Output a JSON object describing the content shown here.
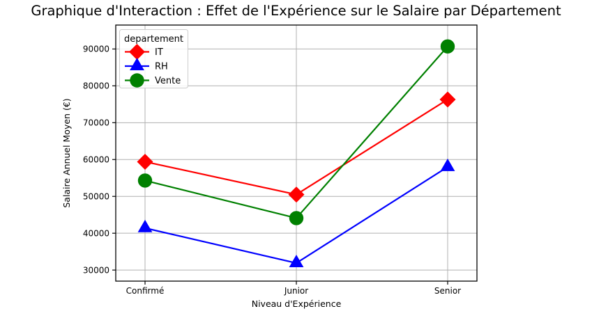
{
  "chart_data": {
    "type": "line",
    "title": "Graphique d'Interaction : Effet de l'Expérience sur le Salaire par Département",
    "xlabel": "Niveau d'Expérience",
    "ylabel": "Salaire Annuel Moyen (€)",
    "categories": [
      "Confirmé",
      "Junior",
      "Senior"
    ],
    "series": [
      {
        "name": "IT",
        "color": "#ff0000",
        "marker": "diamond",
        "values": [
          59400,
          50500,
          76300
        ]
      },
      {
        "name": "RH",
        "color": "#0000ff",
        "marker": "triangle",
        "values": [
          41400,
          31900,
          58000
        ]
      },
      {
        "name": "Vente",
        "color": "#008000",
        "marker": "circle",
        "values": [
          54300,
          44100,
          90700
        ]
      }
    ],
    "legend": {
      "title": "departement",
      "position": "upper-left"
    },
    "yticks": [
      30000,
      40000,
      50000,
      60000,
      70000,
      80000,
      90000
    ],
    "ylim": [
      27000,
      96500
    ],
    "grid": true,
    "grid_color": "#b0b0b0",
    "axis_color": "#000000",
    "text_color": "#000000",
    "legend_border_color": "#cccccc",
    "background_color": "#ffffff"
  }
}
